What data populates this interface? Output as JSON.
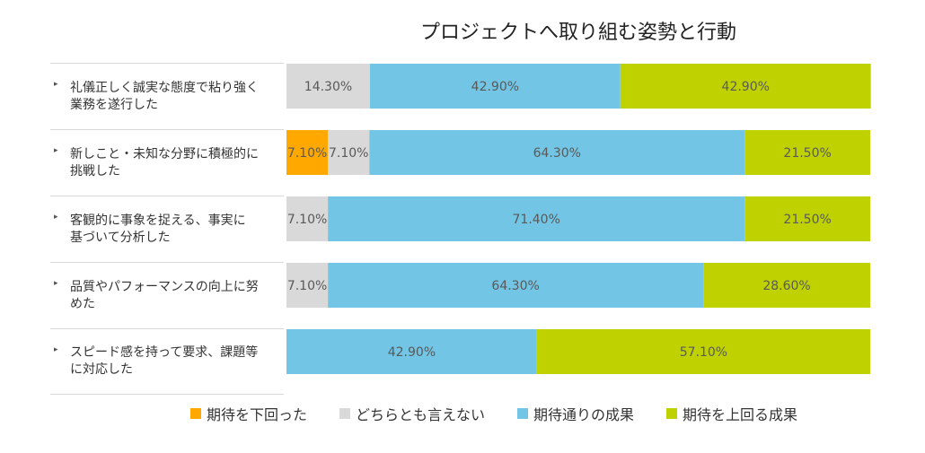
{
  "chart_data": {
    "type": "bar",
    "orientation": "horizontal",
    "stacked": "100%",
    "title": "プロジェクトへ取り組む姿勢と行動",
    "categories": [
      [
        "礼儀正しく誠実な態度で粘り強く",
        "業務を遂行した"
      ],
      [
        "新しこと・未知な分野に積極的に",
        "挑戦した"
      ],
      [
        "客観的に事象を捉える、事実に",
        "基づいて分析した"
      ],
      [
        "品質やパフォーマンスの向上に努",
        "めた"
      ],
      [
        "スピード感を持って要求、課題等",
        "に対応した"
      ]
    ],
    "series": [
      {
        "name": "期待を下回った",
        "color": "#FFA800",
        "values": [
          0,
          7.1,
          0,
          0,
          0
        ],
        "labels": [
          "",
          "7.10%",
          "",
          "",
          ""
        ]
      },
      {
        "name": "どちらとも言えない",
        "color": "#D9D9D9",
        "values": [
          14.3,
          7.1,
          7.1,
          7.1,
          0
        ],
        "labels": [
          "14.30%",
          "7.10%",
          "7.10%",
          "7.10%",
          ""
        ]
      },
      {
        "name": "期待通りの成果",
        "color": "#72C5E4",
        "values": [
          42.9,
          64.3,
          71.4,
          64.3,
          42.9
        ],
        "labels": [
          "42.90%",
          "64.30%",
          "71.40%",
          "64.30%",
          "42.90%"
        ]
      },
      {
        "name": "期待を上回る成果",
        "color": "#BFD200",
        "values": [
          42.9,
          21.5,
          21.5,
          28.6,
          57.1
        ],
        "labels": [
          "42.90%",
          "21.50%",
          "21.50%",
          "28.60%",
          "57.10%"
        ]
      }
    ],
    "xlim": [
      0,
      100
    ],
    "grid": false,
    "legend_position": "bottom"
  }
}
